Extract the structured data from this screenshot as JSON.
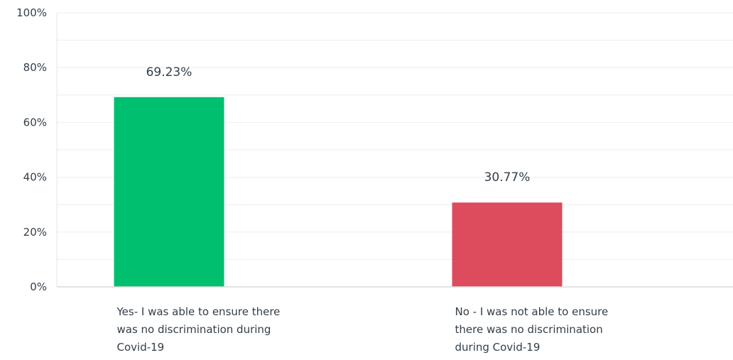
{
  "chart_data": {
    "type": "bar",
    "title": "",
    "xlabel": "",
    "ylabel": "",
    "ylim": [
      0,
      100
    ],
    "y_ticks": [
      "0%",
      "20%",
      "40%",
      "60%",
      "80%",
      "100%"
    ],
    "grid": true,
    "categories": [
      [
        "Yes- I was able to ensure there",
        "was no discrimination during",
        "Covid-19"
      ],
      [
        "No - I was not able to ensure",
        "there was no discrimination",
        "during Covid-19"
      ]
    ],
    "values": [
      69.23,
      30.77
    ],
    "value_labels": [
      "69.23%",
      "30.77%"
    ],
    "colors": [
      "#00bf6f",
      "#dc4c5c"
    ]
  }
}
